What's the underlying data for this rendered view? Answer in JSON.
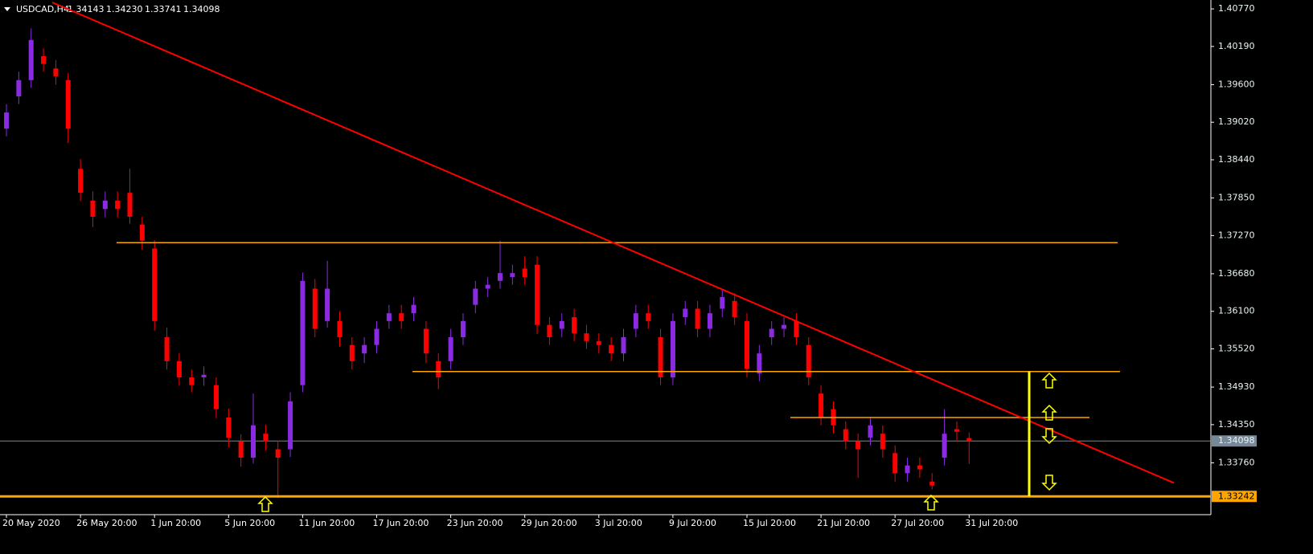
{
  "chart_data": {
    "type": "candlestick",
    "header": {
      "symbol": "USDCAD,H4",
      "ohlc": [
        {
          "value": 1.34143,
          "label": "1.34143"
        },
        {
          "value": 1.3423,
          "label": "1.34230"
        },
        {
          "value": 1.33741,
          "label": "1.33741"
        },
        {
          "value": 1.34098,
          "label": "1.34098"
        }
      ]
    },
    "categories": [
      "20 May 2020",
      null,
      null,
      null,
      null,
      null,
      "26 May 20:00",
      null,
      null,
      null,
      null,
      null,
      "1 Jun 20:00",
      null,
      null,
      null,
      null,
      null,
      "5 Jun 20:00",
      null,
      null,
      null,
      null,
      null,
      "11 Jun 20:00",
      null,
      null,
      null,
      null,
      null,
      "17 Jun 20:00",
      null,
      null,
      null,
      null,
      null,
      "23 Jun 20:00",
      null,
      null,
      null,
      null,
      null,
      "29 Jun 20:00",
      null,
      null,
      null,
      null,
      null,
      "3 Jul 20:00",
      null,
      null,
      null,
      null,
      null,
      "9 Jul 20:00",
      null,
      null,
      null,
      null,
      null,
      "15 Jul 20:00",
      null,
      null,
      null,
      null,
      null,
      "21 Jul 20:00",
      null,
      null,
      null,
      null,
      null,
      "27 Jul 20:00",
      null,
      null,
      null,
      null,
      null,
      "31 Jul 20:00"
    ],
    "open": [
      1.3892,
      1.3942,
      1.3967,
      1.4004,
      1.3985,
      1.3967,
      1.383,
      1.3781,
      1.3768,
      1.3781,
      1.3793,
      1.3744,
      1.3707,
      1.357,
      1.3533,
      1.3508,
      1.3508,
      1.3496,
      1.3446,
      1.3409,
      1.3384,
      1.3421,
      1.3397,
      1.3397,
      1.3496,
      1.3645,
      1.3595,
      1.3595,
      1.3558,
      1.3545,
      1.3558,
      1.3595,
      1.3607,
      1.3607,
      1.3583,
      1.3533,
      1.3533,
      1.357,
      1.362,
      1.3645,
      1.3657,
      1.3663,
      1.3676,
      1.3682,
      1.3589,
      1.3583,
      1.3601,
      1.3576,
      1.3564,
      1.3558,
      1.3545,
      1.3583,
      1.3607,
      1.357,
      1.3508,
      1.3601,
      1.3614,
      1.3583,
      1.3614,
      1.3626,
      1.3595,
      1.3514,
      1.357,
      1.3583,
      1.3595,
      1.3558,
      1.3483,
      1.3459,
      1.3428,
      1.3409,
      1.3415,
      1.3421,
      1.3391,
      1.336,
      1.3372,
      1.3347,
      1.3384,
      1.3428,
      1.34143
    ],
    "high": [
      1.393,
      1.398,
      1.4047,
      1.4016,
      1.3998,
      1.3978,
      1.3845,
      1.3795,
      1.3795,
      1.3795,
      1.383,
      1.3756,
      1.372,
      1.3585,
      1.3545,
      1.352,
      1.3525,
      1.3508,
      1.346,
      1.342,
      1.3483,
      1.3435,
      1.341,
      1.3485,
      1.367,
      1.366,
      1.3688,
      1.361,
      1.357,
      1.357,
      1.3595,
      1.362,
      1.362,
      1.3632,
      1.3595,
      1.3545,
      1.3583,
      1.3607,
      1.3657,
      1.3663,
      1.3719,
      1.3682,
      1.3695,
      1.3695,
      1.3601,
      1.3607,
      1.3614,
      1.3589,
      1.3576,
      1.357,
      1.3583,
      1.362,
      1.362,
      1.3583,
      1.3607,
      1.3626,
      1.3626,
      1.362,
      1.3645,
      1.3638,
      1.3607,
      1.3558,
      1.3595,
      1.3601,
      1.3607,
      1.357,
      1.3496,
      1.3471,
      1.344,
      1.3421,
      1.3446,
      1.3434,
      1.3403,
      1.3384,
      1.3384,
      1.336,
      1.3459,
      1.344,
      1.3423
    ],
    "low": [
      1.388,
      1.393,
      1.3955,
      1.398,
      1.396,
      1.387,
      1.378,
      1.374,
      1.3755,
      1.3755,
      1.3745,
      1.3705,
      1.358,
      1.352,
      1.3495,
      1.3485,
      1.3495,
      1.3445,
      1.34,
      1.337,
      1.3375,
      1.3395,
      1.3322,
      1.3385,
      1.3485,
      1.357,
      1.3585,
      1.3555,
      1.352,
      1.353,
      1.3545,
      1.3583,
      1.3583,
      1.3595,
      1.353,
      1.349,
      1.352,
      1.3558,
      1.3607,
      1.3632,
      1.3645,
      1.3651,
      1.3651,
      1.3575,
      1.3558,
      1.357,
      1.3564,
      1.3552,
      1.3545,
      1.3533,
      1.3533,
      1.357,
      1.3583,
      1.3496,
      1.3496,
      1.3589,
      1.357,
      1.357,
      1.3601,
      1.3589,
      1.3508,
      1.3502,
      1.3558,
      1.357,
      1.3558,
      1.3496,
      1.3434,
      1.3421,
      1.3397,
      1.3353,
      1.3403,
      1.3384,
      1.3347,
      1.3347,
      1.3353,
      1.3335,
      1.3372,
      1.3409,
      1.33741
    ],
    "close": [
      1.3917,
      1.3967,
      1.4029,
      1.3992,
      1.3973,
      1.3892,
      1.3793,
      1.3756,
      1.3781,
      1.3768,
      1.3756,
      1.3719,
      1.3595,
      1.3533,
      1.3508,
      1.3496,
      1.3512,
      1.3459,
      1.3415,
      1.3384,
      1.3434,
      1.3409,
      1.3384,
      1.3471,
      1.3657,
      1.3583,
      1.3645,
      1.357,
      1.3533,
      1.3558,
      1.3583,
      1.3607,
      1.3595,
      1.362,
      1.3545,
      1.3508,
      1.357,
      1.3595,
      1.3645,
      1.3651,
      1.3669,
      1.3669,
      1.3663,
      1.3589,
      1.357,
      1.3595,
      1.3576,
      1.3564,
      1.3558,
      1.3545,
      1.357,
      1.3607,
      1.3595,
      1.3508,
      1.3595,
      1.3614,
      1.3583,
      1.3607,
      1.3632,
      1.3601,
      1.3521,
      1.3545,
      1.3583,
      1.3589,
      1.357,
      1.3508,
      1.3446,
      1.3434,
      1.3409,
      1.3397,
      1.3434,
      1.3397,
      1.336,
      1.3372,
      1.3366,
      1.3341,
      1.3421,
      1.3424,
      1.34098
    ],
    "bull_color": "#8a2be2",
    "bear_color": "#ff0000",
    "ylim": [
      1.3296,
      1.4087
    ],
    "yticks": [
      {
        "value": 1.4077,
        "label": "1.40770"
      },
      {
        "value": 1.4019,
        "label": "1.40190"
      },
      {
        "value": 1.396,
        "label": "1.39600"
      },
      {
        "value": 1.3902,
        "label": "1.39020"
      },
      {
        "value": 1.3844,
        "label": "1.38440"
      },
      {
        "value": 1.3785,
        "label": "1.37850"
      },
      {
        "value": 1.3727,
        "label": "1.37270"
      },
      {
        "value": 1.3668,
        "label": "1.36680"
      },
      {
        "value": 1.361,
        "label": "1.36100"
      },
      {
        "value": 1.3552,
        "label": "1.35520"
      },
      {
        "value": 1.3493,
        "label": "1.34930"
      },
      {
        "value": 1.3435,
        "label": "1.34350"
      },
      {
        "value": 1.3376,
        "label": "1.33760"
      }
    ],
    "levels": [
      1.3716,
      1.3517,
      1.3446
    ],
    "level_color": "#ffa500",
    "support": {
      "value": 1.33242,
      "label": "1.33242"
    },
    "bid": {
      "value": 1.34098,
      "label": "1.34098"
    },
    "bid_color": "#778899",
    "trendline": [
      1.4087,
      1.3345
    ],
    "trendline_color": "#ff0000",
    "measure_color": "#ffff00"
  }
}
